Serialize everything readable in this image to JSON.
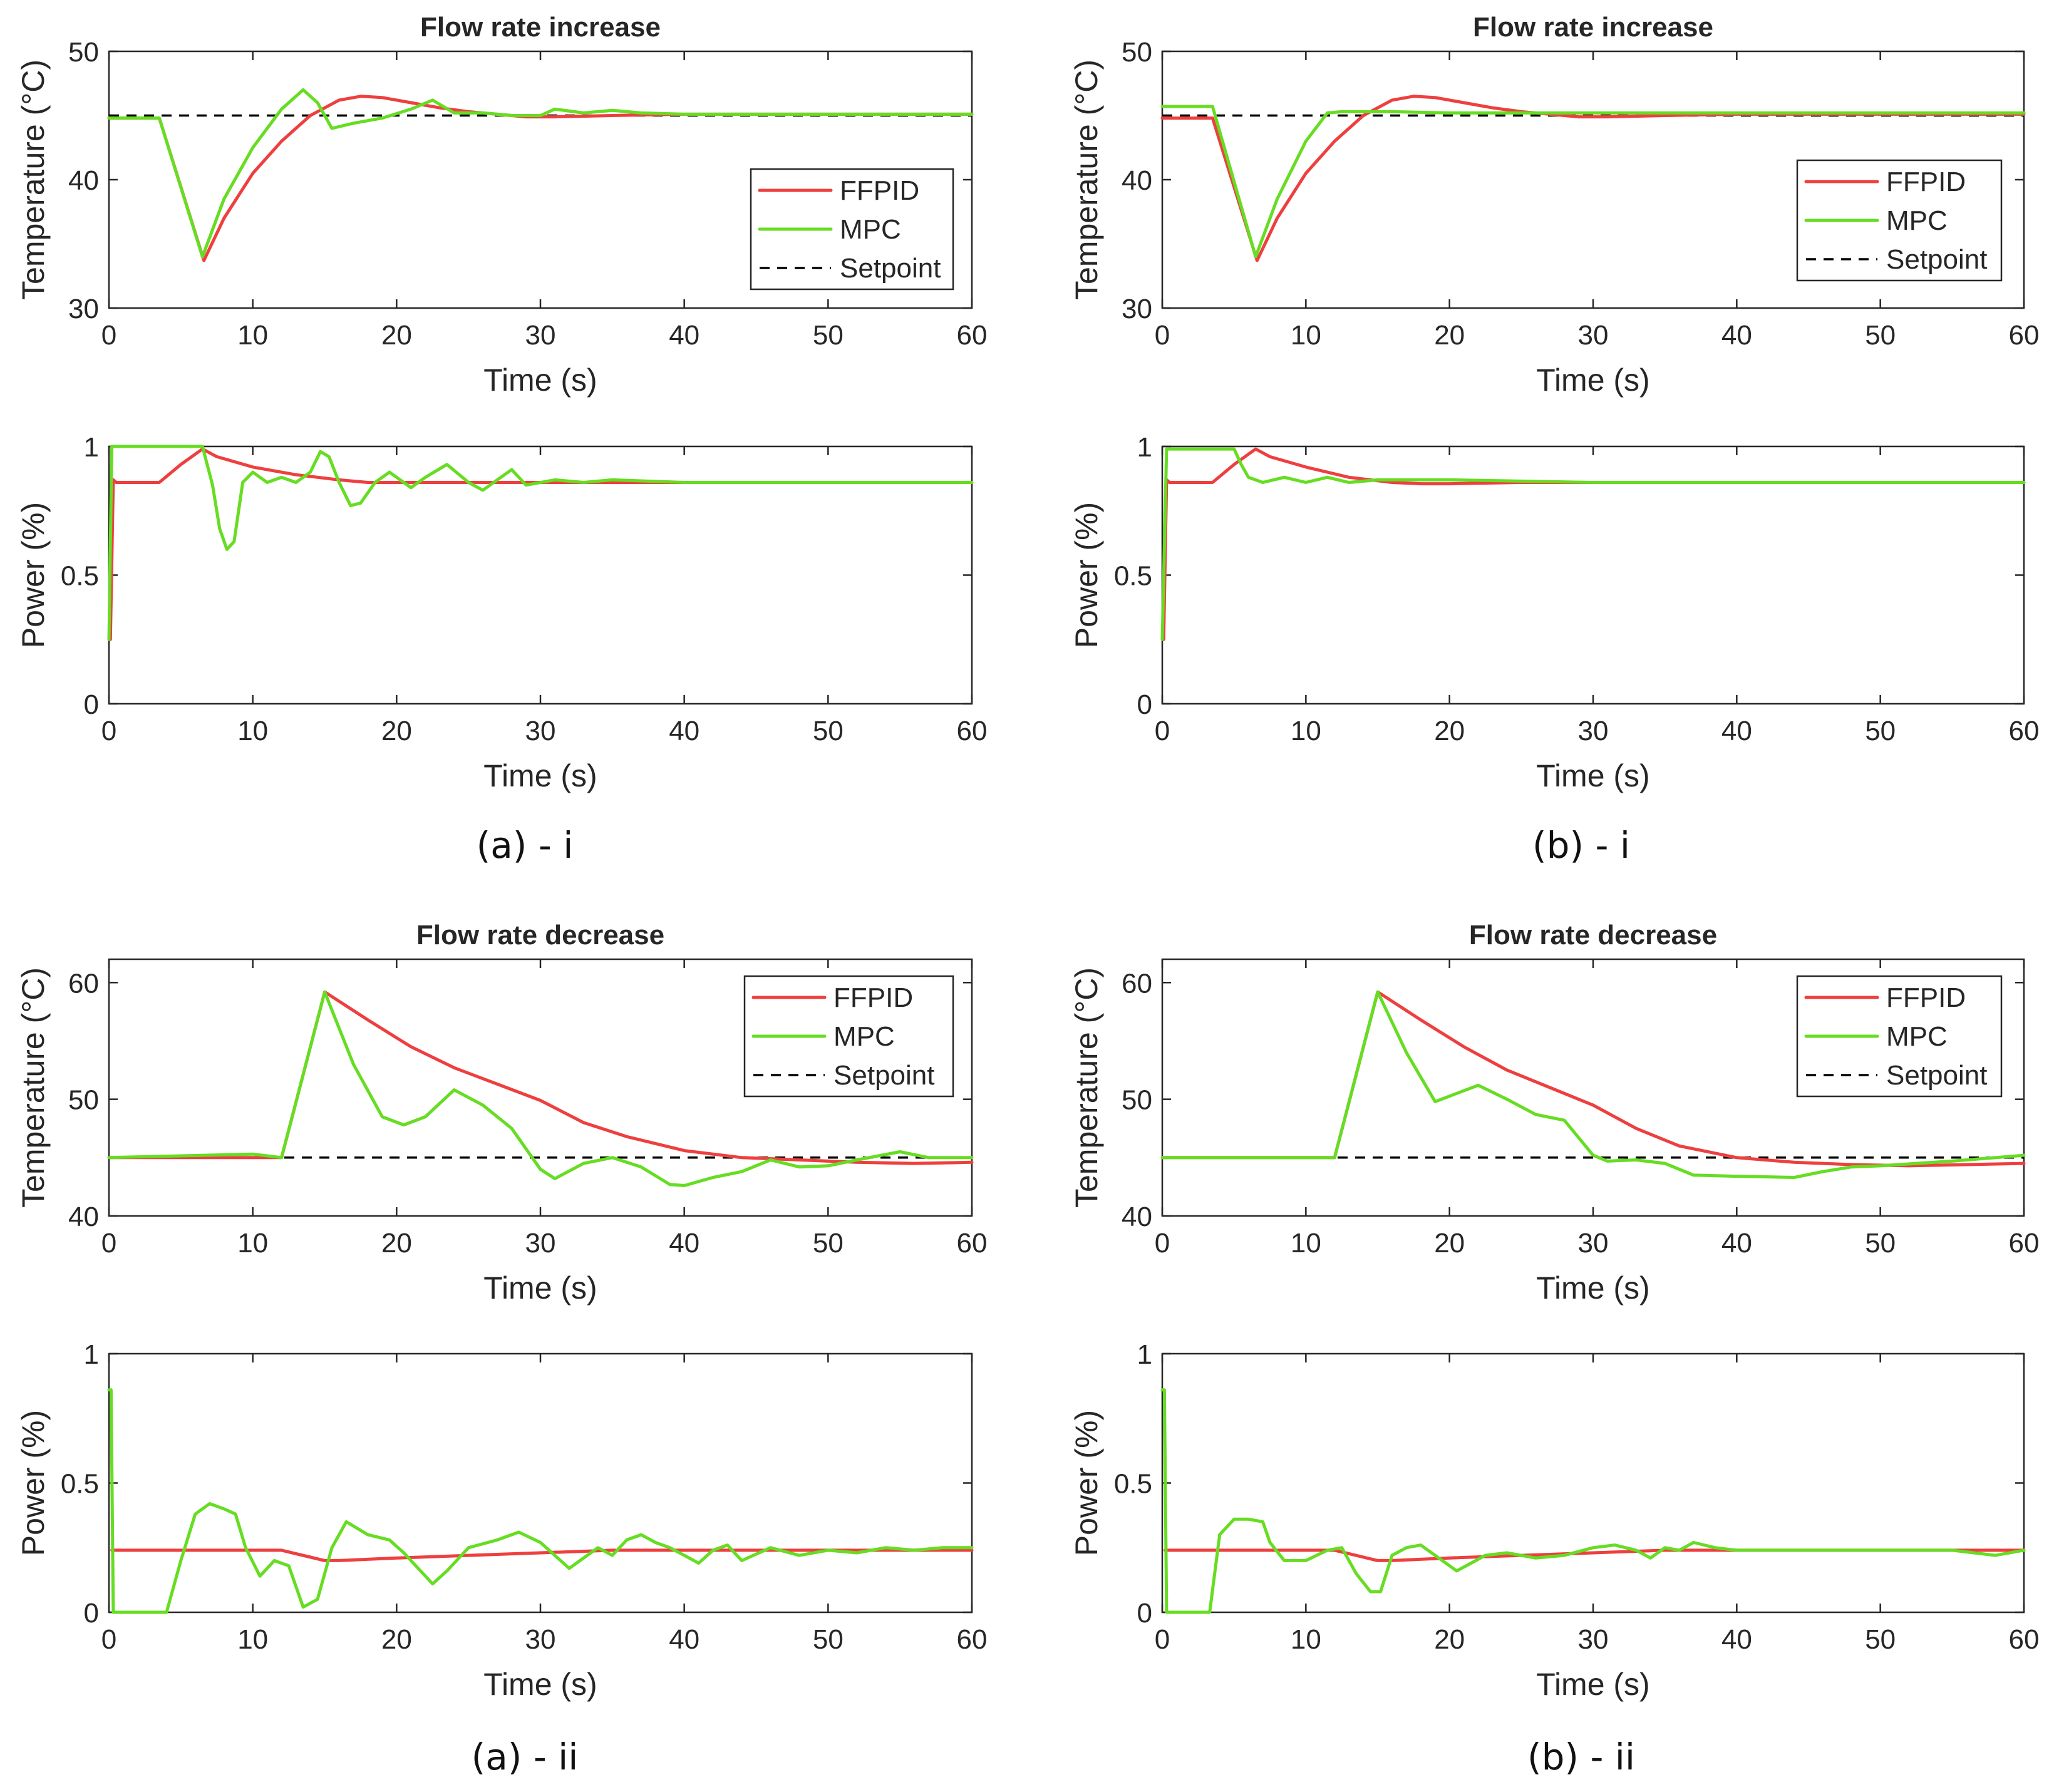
{
  "colors": {
    "ffpid": "#ee3f3f",
    "mpc": "#66dd22",
    "setpoint": "#000000",
    "axis": "#262626"
  },
  "captions": [
    "(a) - i",
    "(b) - i",
    "(a) - ii",
    "(b) - ii"
  ],
  "chart_data": [
    {
      "id": "a-i-temperature",
      "type": "line",
      "title": "Flow rate increase",
      "xlabel": "Time (s)",
      "ylabel": "Temperature (°C)",
      "xlim": [
        0,
        60
      ],
      "ylim": [
        30,
        50
      ],
      "xticks": [
        0,
        10,
        20,
        30,
        40,
        50,
        60
      ],
      "yticks": [
        30,
        40,
        50
      ],
      "legend": {
        "position": "right",
        "entries": [
          "FFPID",
          "MPC",
          "Setpoint"
        ]
      },
      "series": [
        {
          "name": "FFPID",
          "color": "#ee3f3f",
          "x": [
            0,
            3.5,
            6.6,
            8,
            10,
            12,
            14,
            16,
            17.5,
            19,
            21,
            23,
            25,
            27,
            29,
            31,
            35,
            40,
            50,
            60
          ],
          "y": [
            44.8,
            44.8,
            33.7,
            37,
            40.5,
            43,
            45,
            46.2,
            46.5,
            46.4,
            46,
            45.6,
            45.3,
            45.1,
            44.9,
            44.9,
            45,
            45.1,
            45.1,
            45.1
          ]
        },
        {
          "name": "MPC",
          "color": "#66dd22",
          "x": [
            0,
            3.5,
            6.5,
            8,
            10,
            12,
            13.5,
            14.5,
            15.5,
            17,
            19,
            21,
            22.5,
            24,
            26,
            28,
            30,
            31,
            33,
            35,
            37,
            40,
            50,
            60
          ],
          "y": [
            44.8,
            44.8,
            34,
            38.5,
            42.5,
            45.5,
            47,
            46,
            44,
            44.4,
            44.8,
            45.5,
            46.2,
            45.2,
            45.2,
            45,
            45,
            45.5,
            45.2,
            45.4,
            45.2,
            45.1,
            45.1,
            45.1
          ]
        },
        {
          "name": "Setpoint",
          "color": "#000000",
          "dashed": true,
          "x": [
            0,
            60
          ],
          "y": [
            45,
            45
          ]
        }
      ]
    },
    {
      "id": "a-i-power",
      "type": "line",
      "title": "",
      "xlabel": "Time (s)",
      "ylabel": "Power (%)",
      "xlim": [
        0,
        60
      ],
      "ylim": [
        0,
        1
      ],
      "xticks": [
        0,
        10,
        20,
        30,
        40,
        50,
        60
      ],
      "yticks": [
        0,
        0.5,
        1
      ],
      "series": [
        {
          "name": "FFPID",
          "color": "#ee3f3f",
          "x": [
            0.1,
            0.3,
            0.5,
            3.5,
            5,
            6.5,
            7.5,
            10,
            13,
            16,
            18,
            20,
            25,
            30,
            40,
            60
          ],
          "y": [
            0.25,
            0.87,
            0.86,
            0.86,
            0.93,
            0.99,
            0.96,
            0.92,
            0.89,
            0.87,
            0.86,
            0.86,
            0.86,
            0.86,
            0.86,
            0.86
          ]
        },
        {
          "name": "MPC",
          "color": "#66dd22",
          "x": [
            0,
            0.2,
            0.4,
            6.5,
            7.2,
            7.7,
            8.2,
            8.7,
            9.3,
            10,
            11,
            12,
            13,
            14,
            14.7,
            15.3,
            16,
            16.8,
            17.5,
            18.5,
            19.5,
            21,
            22,
            23.5,
            25,
            26,
            27,
            28,
            29,
            31,
            33,
            35,
            40,
            60
          ],
          "y": [
            0.25,
            1,
            1,
            1,
            0.85,
            0.68,
            0.6,
            0.63,
            0.86,
            0.9,
            0.86,
            0.88,
            0.86,
            0.9,
            0.98,
            0.96,
            0.86,
            0.77,
            0.78,
            0.86,
            0.9,
            0.84,
            0.88,
            0.93,
            0.86,
            0.83,
            0.87,
            0.91,
            0.85,
            0.87,
            0.86,
            0.87,
            0.86,
            0.86
          ]
        }
      ]
    },
    {
      "id": "b-i-temperature",
      "type": "line",
      "title": "Flow rate increase",
      "xlabel": "Time (s)",
      "ylabel": "Temperature (°C)",
      "xlim": [
        0,
        60
      ],
      "ylim": [
        30,
        50
      ],
      "xticks": [
        0,
        10,
        20,
        30,
        40,
        50,
        60
      ],
      "yticks": [
        30,
        40,
        50
      ],
      "legend": {
        "position": "right",
        "entries": [
          "FFPID",
          "MPC",
          "Setpoint"
        ]
      },
      "series": [
        {
          "name": "FFPID",
          "color": "#ee3f3f",
          "x": [
            0,
            3.5,
            6.6,
            8,
            10,
            12,
            14,
            16,
            17.5,
            19,
            21,
            23,
            25,
            27,
            29,
            31,
            35,
            40,
            50,
            60
          ],
          "y": [
            44.8,
            44.8,
            33.7,
            37,
            40.5,
            43,
            45,
            46.2,
            46.5,
            46.4,
            46,
            45.6,
            45.3,
            45.1,
            44.9,
            44.9,
            45,
            45.1,
            45.1,
            45.1
          ]
        },
        {
          "name": "MPC",
          "color": "#66dd22",
          "x": [
            0,
            3.5,
            6.5,
            8,
            10,
            11.5,
            12.5,
            14,
            16,
            20,
            25,
            30,
            40,
            50,
            60
          ],
          "y": [
            45.7,
            45.7,
            34,
            38.5,
            43,
            45.2,
            45.3,
            45.3,
            45.3,
            45.2,
            45.2,
            45.2,
            45.2,
            45.2,
            45.2
          ]
        },
        {
          "name": "Setpoint",
          "color": "#000000",
          "dashed": true,
          "x": [
            0,
            60
          ],
          "y": [
            45,
            45
          ]
        }
      ]
    },
    {
      "id": "b-i-power",
      "type": "line",
      "title": "",
      "xlabel": "Time (s)",
      "ylabel": "Power (%)",
      "xlim": [
        0,
        60
      ],
      "ylim": [
        0,
        1
      ],
      "xticks": [
        0,
        10,
        20,
        30,
        40,
        50,
        60
      ],
      "yticks": [
        0,
        0.5,
        1
      ],
      "series": [
        {
          "name": "FFPID",
          "color": "#ee3f3f",
          "x": [
            0.1,
            0.3,
            0.5,
            3.5,
            5,
            6.5,
            7.5,
            10,
            13,
            16,
            18,
            20,
            25,
            30,
            40,
            60
          ],
          "y": [
            0.25,
            0.87,
            0.86,
            0.86,
            0.93,
            0.99,
            0.96,
            0.92,
            0.88,
            0.86,
            0.855,
            0.855,
            0.86,
            0.86,
            0.86,
            0.86
          ]
        },
        {
          "name": "MPC",
          "color": "#66dd22",
          "x": [
            0,
            0.3,
            0.5,
            5,
            5.5,
            6,
            7,
            8.5,
            10,
            11.5,
            13,
            15,
            20,
            30,
            40,
            60
          ],
          "y": [
            0.25,
            0.99,
            0.99,
            0.99,
            0.93,
            0.88,
            0.86,
            0.88,
            0.86,
            0.88,
            0.86,
            0.87,
            0.87,
            0.86,
            0.86,
            0.86
          ]
        }
      ]
    },
    {
      "id": "a-ii-temperature",
      "type": "line",
      "title": "Flow rate decrease",
      "xlabel": "Time (s)",
      "ylabel": "Temperature (°C)",
      "xlim": [
        0,
        60
      ],
      "ylim": [
        40,
        62
      ],
      "xticks": [
        0,
        10,
        20,
        30,
        40,
        50,
        60
      ],
      "yticks": [
        40,
        50,
        60
      ],
      "legend": {
        "position": "top-right",
        "entries": [
          "FFPID",
          "MPC",
          "Setpoint"
        ]
      },
      "series": [
        {
          "name": "FFPID",
          "color": "#ee3f3f",
          "x": [
            0,
            12,
            15,
            18,
            21,
            24,
            27,
            30,
            33,
            36,
            40,
            44,
            48,
            52,
            56,
            60
          ],
          "y": [
            45,
            45,
            59.2,
            56.8,
            54.5,
            52.7,
            51.3,
            49.9,
            48,
            46.8,
            45.6,
            45,
            44.8,
            44.6,
            44.5,
            44.6
          ]
        },
        {
          "name": "MPC",
          "color": "#66dd22",
          "x": [
            0,
            10,
            12,
            15,
            17,
            19,
            20.5,
            22,
            24,
            26,
            28,
            30,
            31,
            33,
            35,
            37,
            39,
            40,
            42,
            44,
            46,
            48,
            50,
            52,
            55,
            57,
            60
          ],
          "y": [
            45,
            45.3,
            45,
            59.2,
            53,
            48.5,
            47.8,
            48.5,
            50.8,
            49.5,
            47.5,
            44,
            43.2,
            44.5,
            45,
            44.2,
            42.7,
            42.6,
            43.3,
            43.8,
            44.8,
            44.2,
            44.3,
            44.8,
            45.5,
            45,
            45
          ]
        },
        {
          "name": "Setpoint",
          "color": "#000000",
          "dashed": true,
          "x": [
            0,
            60
          ],
          "y": [
            45,
            45
          ]
        }
      ]
    },
    {
      "id": "a-ii-power",
      "type": "line",
      "title": "",
      "xlabel": "Time (s)",
      "ylabel": "Power (%)",
      "xlim": [
        0,
        60
      ],
      "ylim": [
        0,
        1
      ],
      "xticks": [
        0,
        10,
        20,
        30,
        40,
        50,
        60
      ],
      "yticks": [
        0,
        0.5,
        1
      ],
      "series": [
        {
          "name": "FFPID",
          "color": "#ee3f3f",
          "x": [
            0.2,
            12,
            15,
            16,
            20,
            25,
            30,
            35,
            40,
            50,
            60
          ],
          "y": [
            0.24,
            0.24,
            0.2,
            0.2,
            0.21,
            0.22,
            0.23,
            0.24,
            0.24,
            0.24,
            0.24
          ]
        },
        {
          "name": "MPC",
          "color": "#66dd22",
          "x": [
            0,
            0.15,
            0.3,
            4,
            5,
            6,
            7,
            8,
            8.8,
            9.5,
            10.5,
            11.5,
            12.5,
            13.5,
            14.5,
            15.5,
            16.5,
            18,
            19.5,
            20.5,
            21.5,
            22.5,
            23.5,
            25,
            27,
            28.5,
            30,
            31,
            32,
            33,
            34,
            35,
            36,
            37,
            38,
            39,
            40,
            41,
            42,
            43,
            44,
            46,
            48,
            50,
            52,
            54,
            56,
            58,
            60
          ],
          "y": [
            0.86,
            0.86,
            0,
            0,
            0.2,
            0.38,
            0.42,
            0.4,
            0.38,
            0.25,
            0.14,
            0.2,
            0.18,
            0.02,
            0.05,
            0.25,
            0.35,
            0.3,
            0.28,
            0.23,
            0.17,
            0.11,
            0.16,
            0.25,
            0.28,
            0.31,
            0.27,
            0.22,
            0.17,
            0.21,
            0.25,
            0.22,
            0.28,
            0.3,
            0.27,
            0.25,
            0.22,
            0.19,
            0.24,
            0.26,
            0.2,
            0.25,
            0.22,
            0.24,
            0.23,
            0.25,
            0.24,
            0.25,
            0.25
          ]
        }
      ]
    },
    {
      "id": "b-ii-temperature",
      "type": "line",
      "title": "Flow rate decrease",
      "xlabel": "Time (s)",
      "ylabel": "Temperature (°C)",
      "xlim": [
        0,
        60
      ],
      "ylim": [
        40,
        62
      ],
      "xticks": [
        0,
        10,
        20,
        30,
        40,
        50,
        60
      ],
      "yticks": [
        40,
        50,
        60
      ],
      "legend": {
        "position": "top-right",
        "entries": [
          "FFPID",
          "MPC",
          "Setpoint"
        ]
      },
      "series": [
        {
          "name": "FFPID",
          "color": "#ee3f3f",
          "x": [
            0,
            12,
            15,
            18,
            21,
            24,
            27,
            30,
            33,
            36,
            40,
            44,
            48,
            52,
            56,
            60
          ],
          "y": [
            45,
            45,
            59.2,
            56.8,
            54.5,
            52.5,
            51,
            49.5,
            47.5,
            46,
            45,
            44.6,
            44.4,
            44.3,
            44.4,
            44.5
          ]
        },
        {
          "name": "MPC",
          "color": "#66dd22",
          "x": [
            0,
            12,
            15,
            17,
            19,
            20.5,
            22,
            24,
            26,
            28,
            30,
            31,
            33,
            35,
            37,
            40,
            44,
            46,
            48,
            50,
            55,
            60
          ],
          "y": [
            45,
            45,
            59.2,
            54,
            49.8,
            50.5,
            51.2,
            50,
            48.7,
            48.2,
            45.2,
            44.7,
            44.8,
            44.5,
            43.5,
            43.4,
            43.3,
            43.8,
            44.2,
            44.3,
            44.7,
            45.2
          ]
        },
        {
          "name": "Setpoint",
          "color": "#000000",
          "dashed": true,
          "x": [
            0,
            60
          ],
          "y": [
            45,
            45
          ]
        }
      ]
    },
    {
      "id": "b-ii-power",
      "type": "line",
      "title": "",
      "xlabel": "Time (s)",
      "ylabel": "Power (%)",
      "xlim": [
        0,
        60
      ],
      "ylim": [
        0,
        1
      ],
      "xticks": [
        0,
        10,
        20,
        30,
        40,
        50,
        60
      ],
      "yticks": [
        0,
        0.5,
        1
      ],
      "series": [
        {
          "name": "FFPID",
          "color": "#ee3f3f",
          "x": [
            0.2,
            12,
            15,
            16,
            20,
            25,
            30,
            35,
            40,
            50,
            60
          ],
          "y": [
            0.24,
            0.24,
            0.2,
            0.2,
            0.21,
            0.22,
            0.23,
            0.24,
            0.24,
            0.24,
            0.24
          ]
        },
        {
          "name": "MPC",
          "color": "#66dd22",
          "x": [
            0,
            0.15,
            0.3,
            3.3,
            4,
            5,
            6,
            7,
            7.5,
            8.5,
            10,
            11.5,
            12.5,
            13.5,
            14.5,
            15.2,
            16,
            17,
            18,
            19.5,
            20.5,
            21.5,
            22.5,
            24,
            26,
            28,
            30,
            31.5,
            33,
            34,
            35,
            36,
            37,
            38.5,
            40,
            45,
            50,
            55,
            58,
            60
          ],
          "y": [
            0.86,
            0.86,
            0,
            0,
            0.3,
            0.36,
            0.36,
            0.35,
            0.27,
            0.2,
            0.2,
            0.24,
            0.25,
            0.15,
            0.08,
            0.08,
            0.22,
            0.25,
            0.26,
            0.2,
            0.16,
            0.19,
            0.22,
            0.23,
            0.21,
            0.22,
            0.25,
            0.26,
            0.24,
            0.21,
            0.25,
            0.24,
            0.27,
            0.25,
            0.24,
            0.24,
            0.24,
            0.24,
            0.22,
            0.24
          ]
        }
      ]
    }
  ]
}
